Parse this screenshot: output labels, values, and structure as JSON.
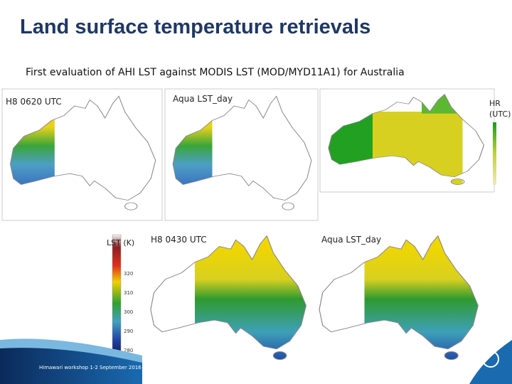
{
  "title": "Land surface temperature retrievals",
  "subtitle": "First evaluation of AHI LST  against MODIS LST (MOD/MYD11A1) for Australia",
  "panels": {
    "top_left": "H8 0620 UTC",
    "top_mid": "Aqua LST_day",
    "top_right": "HR (UTC)",
    "bottom_left": "H8 0430 UTC",
    "bottom_right": "Aqua LST_day"
  },
  "colorbar": {
    "label": "LST (K)",
    "ticks": [
      "320",
      "310",
      "300",
      "290",
      "280"
    ]
  },
  "footer": "Himawari workshop 1-2 September 2016"
}
